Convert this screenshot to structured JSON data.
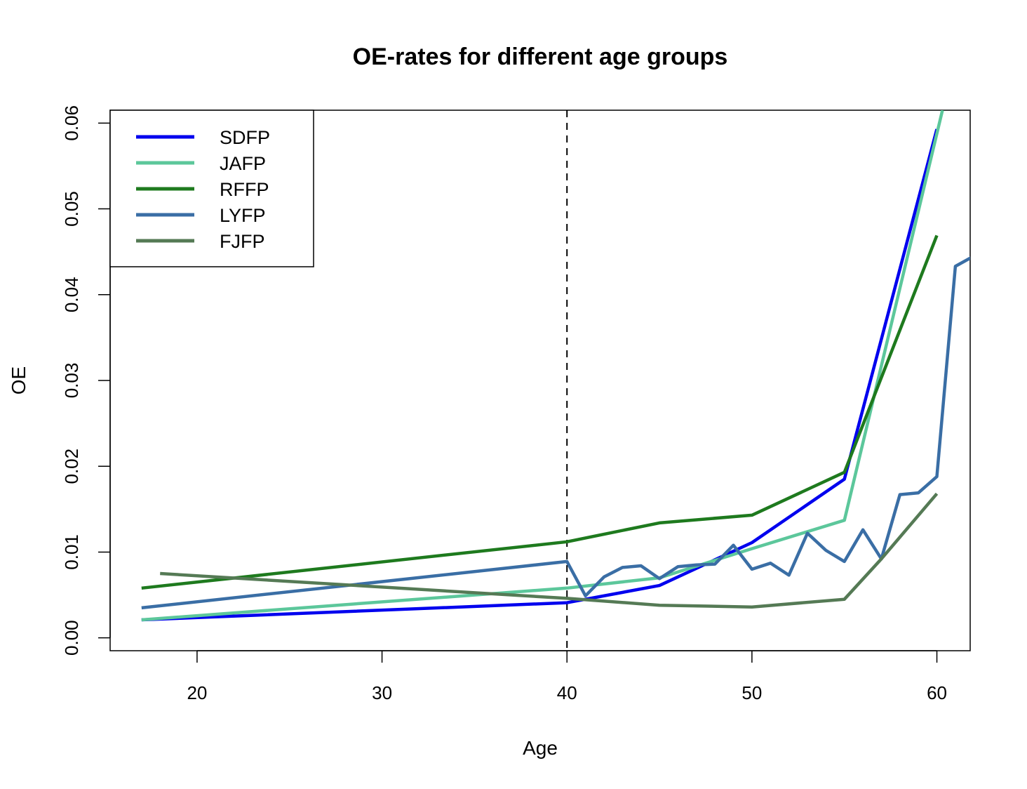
{
  "chart_data": {
    "type": "line",
    "title": "OE-rates for different age groups",
    "xlabel": "Age",
    "ylabel": "OE",
    "xlim": [
      15.3,
      61.8
    ],
    "ylim": [
      -0.0015,
      0.0615
    ],
    "x_ticks": [
      20,
      30,
      40,
      50,
      60
    ],
    "x_tick_labels": [
      "20",
      "30",
      "40",
      "50",
      "60"
    ],
    "y_ticks": [
      0.0,
      0.01,
      0.02,
      0.03,
      0.04,
      0.05,
      0.06
    ],
    "y_tick_labels": [
      "0.00",
      "0.01",
      "0.02",
      "0.03",
      "0.04",
      "0.05",
      "0.06"
    ],
    "grid": false,
    "legend_position": "top-left",
    "reference_lines": [
      {
        "axis": "x",
        "value": 40,
        "style": "dashed",
        "color": "#000000"
      }
    ],
    "series": [
      {
        "name": "SDFP",
        "color": "#0000ee",
        "x": [
          17,
          40,
          45,
          50,
          55,
          60
        ],
        "y": [
          0.0021,
          0.0041,
          0.0061,
          0.0111,
          0.0185,
          0.0593
        ]
      },
      {
        "name": "JAFP",
        "color": "#5cc79b",
        "x": [
          17,
          40,
          45,
          50,
          55,
          60.3
        ],
        "y": [
          0.0021,
          0.0058,
          0.007,
          0.0104,
          0.0137,
          0.0615
        ]
      },
      {
        "name": "RFFP",
        "color": "#1e7a1e",
        "x": [
          17,
          40,
          45,
          50,
          55,
          60
        ],
        "y": [
          0.0058,
          0.0112,
          0.0134,
          0.0143,
          0.0193,
          0.0469
        ]
      },
      {
        "name": "LYFP",
        "color": "#3a6ea5",
        "x": [
          17,
          40,
          41,
          42,
          43,
          44,
          45,
          46,
          47,
          48,
          49,
          50,
          51,
          52,
          53,
          54,
          55,
          56,
          57,
          58,
          59,
          60,
          61,
          62
        ],
        "y": [
          0.0035,
          0.0089,
          0.0049,
          0.0071,
          0.0082,
          0.0084,
          0.0069,
          0.0083,
          0.0085,
          0.0086,
          0.0108,
          0.008,
          0.0087,
          0.0073,
          0.0122,
          0.0102,
          0.0089,
          0.0126,
          0.0092,
          0.0167,
          0.0169,
          0.0188,
          0.0433,
          0.0445
        ]
      },
      {
        "name": "FJFP",
        "color": "#557a55",
        "x": [
          18,
          40,
          45,
          50,
          55,
          57,
          60
        ],
        "y": [
          0.0075,
          0.0046,
          0.0038,
          0.0036,
          0.0045,
          0.0092,
          0.0168
        ]
      }
    ]
  }
}
